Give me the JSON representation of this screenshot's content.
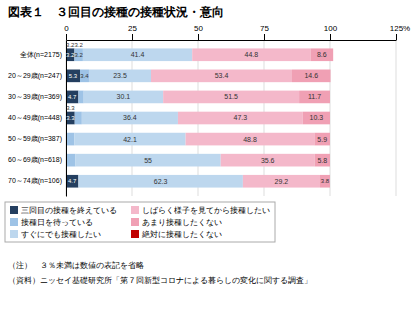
{
  "chart_data": {
    "type": "bar",
    "orientation": "horizontal",
    "stacked": true,
    "title": "図表１　３回目の接種の接種状況・意向",
    "categories": [
      "全体(n=2175)",
      "20～29歳(n=247)",
      "30～39歳(n=369)",
      "40～49歳(n=448)",
      "50～59歳(n=387)",
      "60～69歳(n=618)",
      "70～74歳(n=106)"
    ],
    "series": [
      {
        "name": "三回目の接種を終えている",
        "color": "#243f60",
        "values": [
          3.2,
          5.3,
          4.7,
          3.3,
          0.0,
          0.0,
          4.7
        ],
        "value_labels": [
          "3.2",
          "5.3",
          "4.7",
          "3.3",
          null,
          null,
          "4.7"
        ]
      },
      {
        "name": "接種日を待っている",
        "color": "#9ec3e6",
        "values": [
          3.2,
          3.4,
          2.0,
          2.7,
          3.2,
          3.6,
          0.0
        ],
        "value_labels": [
          "3.2",
          "3.4",
          null,
          null,
          null,
          null,
          null
        ]
      },
      {
        "name": "すぐにでも接種したい",
        "color": "#bdd7ee",
        "values": [
          41.4,
          23.5,
          30.1,
          36.4,
          42.1,
          55.0,
          62.3
        ],
        "value_labels": [
          "41.4",
          "23.5",
          "30.1",
          "36.4",
          "42.1",
          "55",
          "62.3"
        ]
      },
      {
        "name": "しばらく様子を見てから接種したい",
        "color": "#f4b8ca",
        "values": [
          44.8,
          53.4,
          51.5,
          47.3,
          48.8,
          35.6,
          29.2
        ],
        "value_labels": [
          "44.8",
          "53.4",
          "51.5",
          "47.3",
          "48.8",
          "35.6",
          "29.2"
        ]
      },
      {
        "name": "あまり接種したくない",
        "color": "#f0a0b4",
        "values": [
          8.6,
          14.6,
          11.7,
          10.3,
          5.9,
          5.8,
          3.8
        ],
        "value_labels": [
          "8.6",
          "14.6",
          "11.7",
          "10.3",
          "5.9",
          "5.8",
          "3.8"
        ]
      },
      {
        "name": "絶対に接種したくない",
        "color": "#c00000",
        "values": [
          0.0,
          0.0,
          0.0,
          0.0,
          0.0,
          0.0,
          0.0
        ],
        "value_labels": [
          null,
          null,
          null,
          null,
          null,
          null,
          null
        ]
      }
    ],
    "xlim": [
      0,
      125
    ],
    "xticks": [
      0,
      25,
      50,
      75,
      100,
      125
    ],
    "xlabel": "%",
    "grid": true,
    "legend": "bottom",
    "data_labels": true,
    "annotations": [
      {
        "text": "3.2",
        "series_index": 0,
        "category_index": 0
      },
      {
        "text": "3.2",
        "series_index": 1,
        "category_index": 0
      },
      {
        "text": "3.3",
        "series_index": 0,
        "category_index": 3
      }
    ],
    "notes": [
      "（注）　３％未満は数値の表記を省略",
      "（資料）ニッセイ基礎研究所「第７回新型コロナによる暮らしの変化に関する調査」"
    ]
  }
}
